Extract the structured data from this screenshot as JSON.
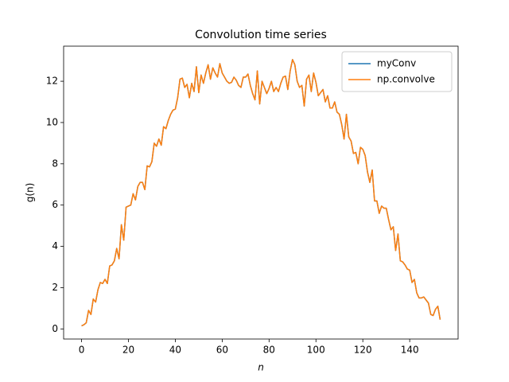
{
  "chart_data": {
    "type": "line",
    "title": "Convolution time series",
    "xlabel": "n",
    "ylabel": "g(n)",
    "x": [
      0,
      1,
      2,
      3,
      4,
      5,
      6,
      7,
      8,
      9,
      10,
      11,
      12,
      13,
      14,
      15,
      16,
      17,
      18,
      19,
      20,
      21,
      22,
      23,
      24,
      25,
      26,
      27,
      28,
      29,
      30,
      31,
      32,
      33,
      34,
      35,
      36,
      37,
      38,
      39,
      40,
      41,
      42,
      43,
      44,
      45,
      46,
      47,
      48,
      49,
      50,
      51,
      52,
      53,
      54,
      55,
      56,
      57,
      58,
      59,
      60,
      61,
      62,
      63,
      64,
      65,
      66,
      67,
      68,
      69,
      70,
      71,
      72,
      73,
      74,
      75,
      76,
      77,
      78,
      79,
      80,
      81,
      82,
      83,
      84,
      85,
      86,
      87,
      88,
      89,
      90,
      91,
      92,
      93,
      94,
      95,
      96,
      97,
      98,
      99,
      100,
      101,
      102,
      103,
      104,
      105,
      106,
      107,
      108,
      109,
      110,
      111,
      112,
      113,
      114,
      115,
      116,
      117,
      118,
      119,
      120,
      121,
      122,
      123,
      124,
      125,
      126,
      127,
      128,
      129,
      130,
      131,
      132,
      133,
      134,
      135,
      136,
      137,
      138,
      139,
      140,
      141,
      142,
      143,
      144,
      145,
      146,
      147,
      148,
      149,
      150,
      151,
      152,
      153
    ],
    "series": [
      {
        "name": "myConv",
        "color": "#1f77b4",
        "values": [
          0.15,
          0.2,
          0.3,
          0.9,
          0.7,
          1.45,
          1.3,
          1.9,
          2.25,
          2.2,
          2.4,
          2.2,
          3.05,
          3.1,
          3.3,
          3.9,
          3.4,
          5.05,
          4.3,
          5.9,
          5.95,
          6.0,
          6.55,
          6.25,
          6.9,
          7.1,
          7.1,
          6.75,
          7.9,
          7.85,
          8.1,
          9.0,
          8.85,
          9.2,
          8.9,
          9.8,
          9.7,
          10.1,
          10.4,
          10.6,
          10.65,
          11.2,
          12.1,
          12.15,
          11.7,
          11.85,
          11.2,
          11.9,
          11.5,
          12.7,
          11.45,
          12.3,
          11.9,
          12.4,
          12.8,
          12.1,
          12.65,
          12.4,
          12.2,
          12.85,
          12.4,
          12.2,
          12.0,
          11.9,
          11.95,
          12.2,
          12.05,
          11.8,
          11.7,
          12.2,
          12.2,
          12.35,
          11.8,
          11.4,
          11.1,
          12.5,
          10.9,
          12.0,
          11.7,
          11.4,
          11.65,
          12.0,
          11.5,
          11.7,
          11.5,
          11.9,
          12.2,
          12.25,
          11.6,
          12.5,
          13.05,
          12.8,
          12.0,
          11.7,
          11.8,
          10.8,
          12.1,
          12.3,
          11.5,
          12.4,
          11.95,
          11.3,
          11.45,
          11.6,
          11.0,
          11.3,
          10.7,
          10.7,
          11.0,
          10.5,
          10.4,
          9.9,
          9.2,
          10.4,
          9.3,
          9.1,
          8.5,
          8.55,
          8.0,
          8.8,
          8.7,
          8.4,
          7.6,
          7.1,
          7.7,
          6.2,
          6.2,
          5.6,
          5.95,
          5.85,
          5.85,
          5.3,
          4.8,
          4.95,
          3.8,
          4.6,
          3.3,
          3.25,
          3.1,
          2.9,
          2.85,
          2.25,
          2.4,
          1.75,
          1.5,
          1.5,
          1.55,
          1.4,
          1.25,
          0.7,
          0.65,
          0.95,
          1.1,
          0.45
        ]
      },
      {
        "name": "np.convolve",
        "color": "#ff7f0e",
        "values": [
          0.15,
          0.2,
          0.3,
          0.9,
          0.7,
          1.45,
          1.3,
          1.9,
          2.25,
          2.2,
          2.4,
          2.2,
          3.05,
          3.1,
          3.3,
          3.9,
          3.4,
          5.05,
          4.3,
          5.9,
          5.95,
          6.0,
          6.55,
          6.25,
          6.9,
          7.1,
          7.1,
          6.75,
          7.9,
          7.85,
          8.1,
          9.0,
          8.85,
          9.2,
          8.9,
          9.8,
          9.7,
          10.1,
          10.4,
          10.6,
          10.65,
          11.2,
          12.1,
          12.15,
          11.7,
          11.85,
          11.2,
          11.9,
          11.5,
          12.7,
          11.45,
          12.3,
          11.9,
          12.4,
          12.8,
          12.1,
          12.65,
          12.4,
          12.2,
          12.85,
          12.4,
          12.2,
          12.0,
          11.9,
          11.95,
          12.2,
          12.05,
          11.8,
          11.7,
          12.2,
          12.2,
          12.35,
          11.8,
          11.4,
          11.1,
          12.5,
          10.9,
          12.0,
          11.7,
          11.4,
          11.65,
          12.0,
          11.5,
          11.7,
          11.5,
          11.9,
          12.2,
          12.25,
          11.6,
          12.5,
          13.05,
          12.8,
          12.0,
          11.7,
          11.8,
          10.8,
          12.1,
          12.3,
          11.5,
          12.4,
          11.95,
          11.3,
          11.45,
          11.6,
          11.0,
          11.3,
          10.7,
          10.7,
          11.0,
          10.5,
          10.4,
          9.9,
          9.2,
          10.4,
          9.3,
          9.1,
          8.5,
          8.55,
          8.0,
          8.8,
          8.7,
          8.4,
          7.6,
          7.1,
          7.7,
          6.2,
          6.2,
          5.6,
          5.95,
          5.85,
          5.85,
          5.3,
          4.8,
          4.95,
          3.8,
          4.6,
          3.3,
          3.25,
          3.1,
          2.9,
          2.85,
          2.25,
          2.4,
          1.75,
          1.5,
          1.5,
          1.55,
          1.4,
          1.25,
          0.7,
          0.65,
          0.95,
          1.1,
          0.45
        ]
      }
    ],
    "xlim": [
      -7.65,
      160.65
    ],
    "xticks": [
      0,
      20,
      40,
      60,
      80,
      100,
      120,
      140
    ],
    "ylim": [
      -0.49,
      13.7
    ],
    "yticks": [
      0,
      2,
      4,
      6,
      8,
      10,
      12
    ],
    "legend": "upper right",
    "grid": false
  }
}
